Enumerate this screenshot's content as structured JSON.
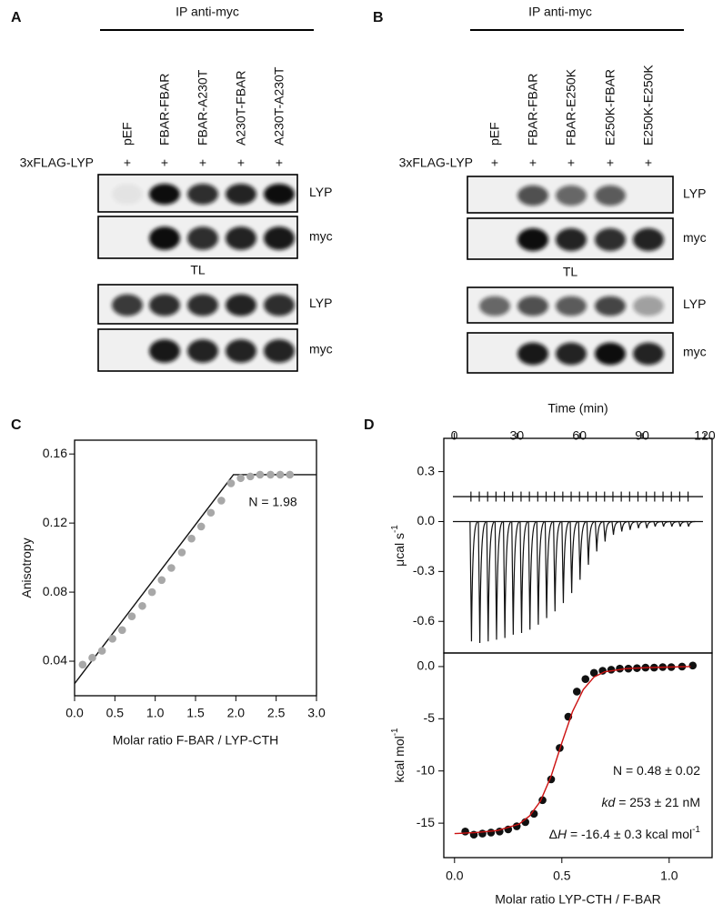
{
  "blot_panels": [
    {
      "label": "A",
      "header": "IP anti-myc",
      "lanes": [
        "pEF",
        "FBAR-FBAR",
        "FBAR-A230T",
        "A230T-FBAR",
        "A230T-A230T"
      ],
      "row_label": "3xFLAG-LYP",
      "row_marks": [
        "+",
        "+",
        "+",
        "+",
        "+"
      ],
      "blot_labels": [
        "LYP",
        "myc",
        "LYP",
        "myc"
      ],
      "section_label": "TL"
    },
    {
      "label": "B",
      "header": "IP anti-myc",
      "lanes": [
        "pEF",
        "FBAR-FBAR",
        "FBAR-E250K",
        "E250K-FBAR",
        "E250K-E250K"
      ],
      "row_label": "3xFLAG-LYP",
      "row_marks": [
        "+",
        "+",
        "+",
        "+",
        "+"
      ],
      "blot_labels": [
        "LYP",
        "myc",
        "LYP",
        "myc"
      ],
      "section_label": "TL"
    }
  ],
  "chart_data": [
    {
      "type": "scatter",
      "label": "C",
      "x": [
        0.1,
        0.22,
        0.34,
        0.47,
        0.59,
        0.71,
        0.84,
        0.96,
        1.08,
        1.2,
        1.33,
        1.45,
        1.57,
        1.69,
        1.82,
        1.94,
        2.06,
        2.18,
        2.3,
        2.43,
        2.55,
        2.67
      ],
      "values": [
        0.038,
        0.042,
        0.046,
        0.053,
        0.058,
        0.066,
        0.072,
        0.08,
        0.087,
        0.094,
        0.103,
        0.111,
        0.118,
        0.126,
        0.133,
        0.143,
        0.146,
        0.147,
        0.148,
        0.148,
        0.148,
        0.148
      ],
      "fit": {
        "x": [
          0,
          1.97,
          3
        ],
        "values": [
          0.027,
          0.148,
          0.148
        ]
      },
      "xlim": [
        0,
        3
      ],
      "xticks": [
        {
          "value": 0,
          "label": "0.0"
        },
        {
          "value": 0.5,
          "label": "0.5"
        },
        {
          "value": 1,
          "label": "1.0"
        },
        {
          "value": 1.5,
          "label": "1.5"
        },
        {
          "value": 2,
          "label": "2.0"
        },
        {
          "value": 2.5,
          "label": "2.5"
        },
        {
          "value": 3,
          "label": "3.0"
        }
      ],
      "ylim": [
        0.02,
        0.168
      ],
      "yticks": [
        0.04,
        0.08,
        0.12,
        0.16
      ],
      "x_label": "Molar ratio F-BAR / LYP-CTH",
      "y_label": "Anisotropy",
      "annotation": "N = 1.98",
      "color": "#a8a8a8",
      "line_color": "#111111"
    },
    {
      "type": "thermogram",
      "label": "D",
      "x": [
        8,
        12,
        16,
        20,
        24,
        28,
        32,
        36,
        40,
        44,
        48,
        52,
        56,
        60,
        64,
        68,
        72,
        76,
        80,
        84,
        88,
        92,
        96,
        100,
        104,
        108,
        112
      ],
      "values": [
        -0.72,
        -0.73,
        -0.72,
        -0.71,
        -0.7,
        -0.68,
        -0.67,
        -0.65,
        -0.62,
        -0.58,
        -0.54,
        -0.49,
        -0.43,
        -0.35,
        -0.26,
        -0.18,
        -0.12,
        -0.08,
        -0.06,
        -0.05,
        -0.04,
        -0.04,
        -0.03,
        -0.03,
        -0.03,
        -0.03,
        -0.03
      ],
      "upper_baseline": 0.15,
      "upper_spike": 0.03,
      "xlim": [
        -5,
        123.5
      ],
      "xticks": [
        0,
        30,
        60,
        90,
        120
      ],
      "ylim": [
        -0.79,
        0.5
      ],
      "yticks": [
        0.3,
        {
          "value": 0,
          "label": "0.0"
        },
        -0.3,
        -0.6
      ],
      "x_label": "Time (min)",
      "y_label": "μcal  s",
      "y_label_sup": "-1",
      "color": "#111111"
    },
    {
      "type": "scatter",
      "x": [
        0.05,
        0.09,
        0.13,
        0.17,
        0.21,
        0.25,
        0.29,
        0.33,
        0.37,
        0.41,
        0.45,
        0.49,
        0.53,
        0.57,
        0.61,
        0.65,
        0.69,
        0.73,
        0.77,
        0.81,
        0.85,
        0.89,
        0.93,
        0.97,
        1.01,
        1.06,
        1.11
      ],
      "values": [
        -15.8,
        -16.1,
        -16,
        -15.9,
        -15.8,
        -15.6,
        -15.3,
        -14.9,
        -14.1,
        -12.8,
        -10.8,
        -7.8,
        -4.8,
        -2.4,
        -1.2,
        -0.6,
        -0.4,
        -0.3,
        -0.2,
        -0.2,
        -0.15,
        -0.1,
        -0.1,
        -0.05,
        -0.05,
        0,
        0.1
      ],
      "fit": {
        "x": [
          0,
          0.1,
          0.2,
          0.3,
          0.35,
          0.4,
          0.45,
          0.5,
          0.55,
          0.6,
          0.65,
          0.7,
          0.8,
          0.9,
          1,
          1.1
        ],
        "values": [
          -16,
          -15.9,
          -15.7,
          -15.1,
          -14.3,
          -12.9,
          -10.5,
          -7.3,
          -4.3,
          -2.2,
          -1,
          -0.5,
          -0.2,
          -0.1,
          -0.05,
          0
        ]
      },
      "xlim": [
        -0.05,
        1.2
      ],
      "xticks": [
        {
          "value": 0,
          "label": "0.0"
        },
        {
          "value": 0.5,
          "label": "0.5"
        },
        {
          "value": 1,
          "label": "1.0"
        }
      ],
      "ylim": [
        -18.3,
        1.3
      ],
      "yticks": [
        {
          "value": 0,
          "label": "0.0"
        },
        -5,
        -10,
        -15
      ],
      "x_label": "Molar ratio LYP-CTH / F-BAR",
      "y_label": "kcal mol",
      "y_label_sup": "-1",
      "annotations": [
        [
          "N = 0.48 ± 0.02"
        ],
        [
          "kd",
          " = 253 ± 21 nM"
        ],
        [
          "Δ",
          "H",
          " = -16.4 ± 0.3 kcal mol",
          "-1"
        ]
      ],
      "color": "#111111",
      "line_color": "#cc1111"
    }
  ]
}
